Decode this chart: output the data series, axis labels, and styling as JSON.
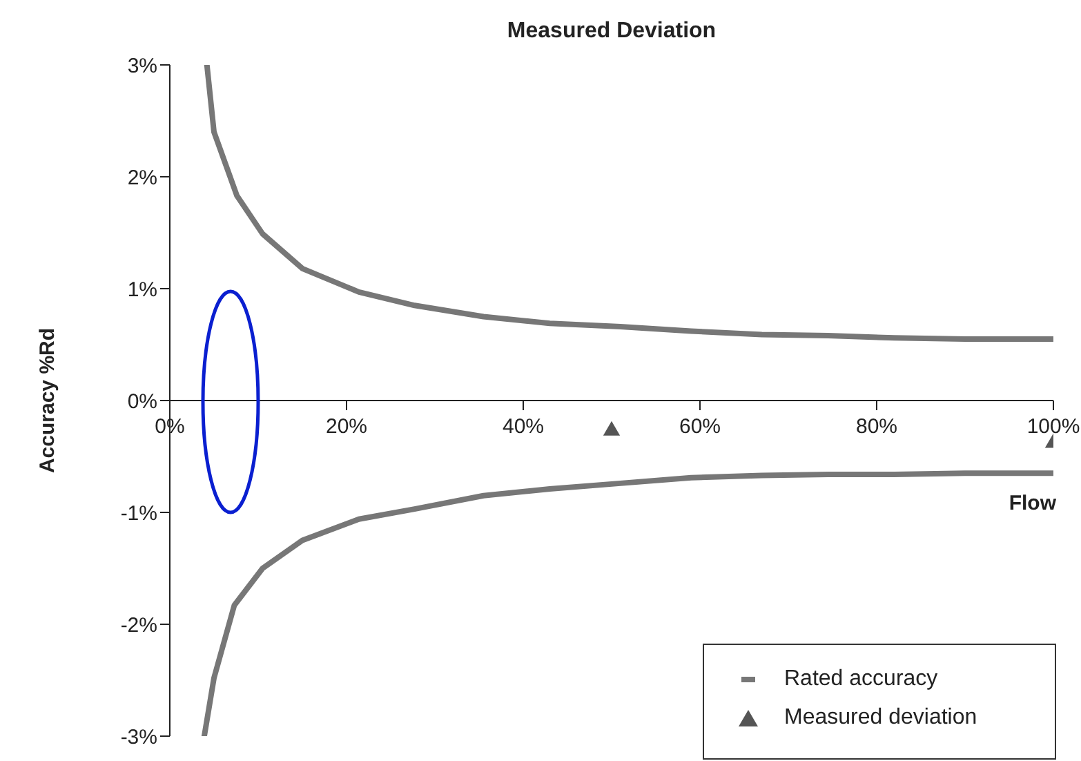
{
  "chart_data": {
    "type": "line",
    "title": "Measured Deviation",
    "xlabel": "Flow",
    "ylabel": "Accuracy %Rd",
    "xlim": [
      0,
      100
    ],
    "xticks": [
      {
        "value": 0,
        "label": "0%"
      },
      {
        "value": 20,
        "label": "20%"
      },
      {
        "value": 40,
        "label": "40%"
      },
      {
        "value": 60,
        "label": "60%"
      },
      {
        "value": 80,
        "label": "80%"
      },
      {
        "value": 100,
        "label": "100%"
      }
    ],
    "ylim": [
      -3,
      3
    ],
    "yticks": [
      {
        "value": -3,
        "label": "-3%"
      },
      {
        "value": -2,
        "label": "-2%"
      },
      {
        "value": -1,
        "label": "-1%"
      },
      {
        "value": 0,
        "label": "0%"
      },
      {
        "value": 1,
        "label": "1%"
      },
      {
        "value": 2,
        "label": "2%"
      },
      {
        "value": 3,
        "label": "3%"
      }
    ],
    "grid": false,
    "legend": "bottom right",
    "series": [
      {
        "name": "Rated accuracy",
        "color": "#777777",
        "x": [
          4.2,
          5,
          7.6,
          10.5,
          15,
          21.4,
          27.7,
          35.5,
          43,
          51,
          59,
          67,
          74.5,
          82,
          90,
          100
        ],
        "values": [
          3,
          2.4,
          1.83,
          1.49,
          1.18,
          0.97,
          0.85,
          0.75,
          0.69,
          0.66,
          0.62,
          0.59,
          0.58,
          0.56,
          0.55,
          0.55
        ]
      },
      {
        "color": "#777777",
        "x": [
          3.9,
          5,
          7.3,
          10.5,
          15,
          21.4,
          27.7,
          35.5,
          43,
          51,
          59,
          67,
          74.5,
          82,
          90,
          100
        ],
        "values": [
          -3,
          -2.48,
          -1.83,
          -1.5,
          -1.25,
          -1.06,
          -0.97,
          -0.85,
          -0.79,
          -0.74,
          -0.69,
          -0.67,
          -0.66,
          -0.66,
          -0.65,
          -0.65
        ]
      },
      {
        "name": "Measured deviation",
        "type": "scatter",
        "marker": "triangle",
        "color": "#555555",
        "x": [
          50,
          100
        ],
        "values": [
          -0.27,
          -0.38
        ]
      }
    ]
  }
}
